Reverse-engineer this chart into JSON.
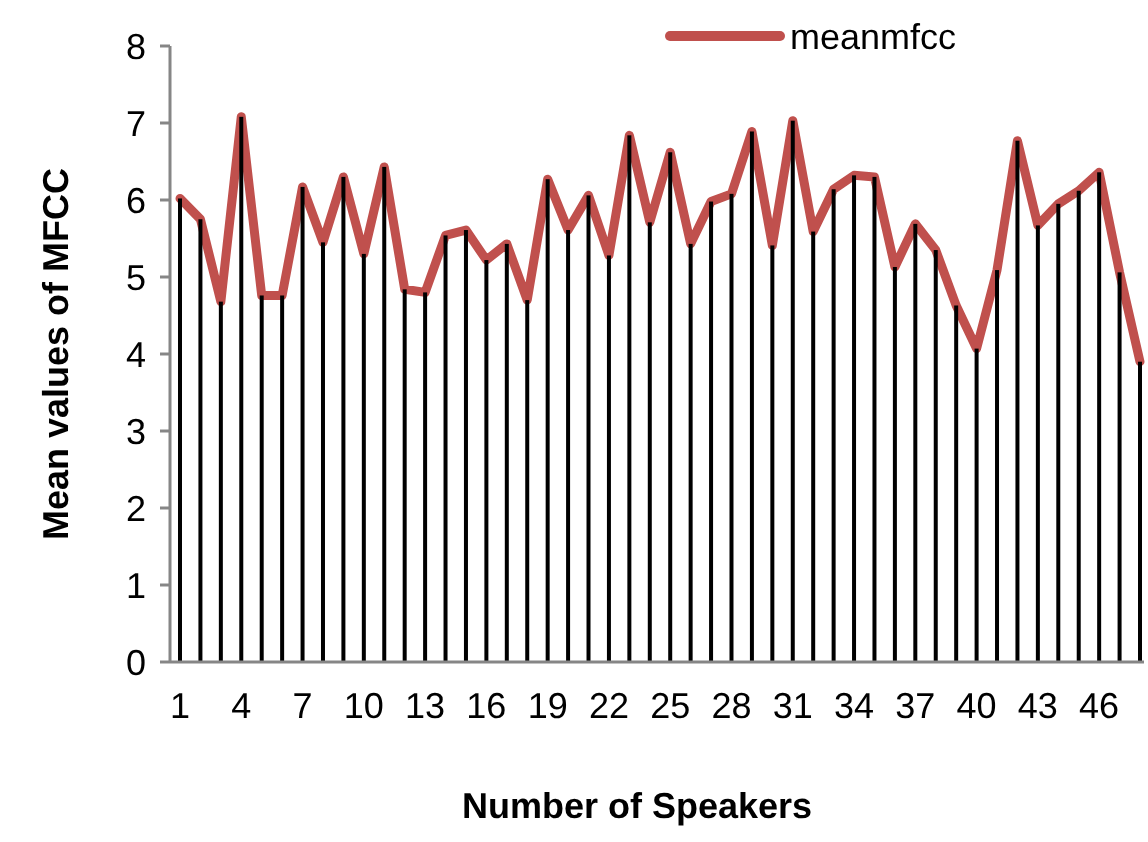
{
  "chart_data": {
    "type": "line",
    "xlabel": "Number of Speakers",
    "ylabel": "Mean values of MFCC",
    "categories": [
      "1",
      null,
      null,
      "4",
      null,
      null,
      "7",
      null,
      null,
      "10",
      null,
      null,
      "13",
      null,
      null,
      "16",
      null,
      null,
      "19",
      null,
      null,
      "22",
      null,
      null,
      "25",
      null,
      null,
      "28",
      null,
      null,
      "31",
      null,
      null,
      "34",
      null,
      null,
      "37",
      null,
      null,
      "40",
      null,
      null,
      "43",
      null,
      null,
      "46",
      null,
      null
    ],
    "series": [
      {
        "type": "bar",
        "color": "#000000",
        "values": [
          6.02,
          5.75,
          4.68,
          7.08,
          4.76,
          4.76,
          6.17,
          5.45,
          6.3,
          5.3,
          6.43,
          4.84,
          4.8,
          5.54,
          5.61,
          5.22,
          5.43,
          4.7,
          6.27,
          5.61,
          6.06,
          5.28,
          6.84,
          5.71,
          6.62,
          5.43,
          5.98,
          6.08,
          6.89,
          5.41,
          7.03,
          5.59,
          6.14,
          6.32,
          6.3,
          5.13,
          5.69,
          5.35,
          4.63,
          4.07,
          5.09,
          6.77,
          5.67,
          5.95,
          6.12,
          6.36,
          5.06,
          3.9
        ]
      },
      {
        "name": "meanmfcc",
        "color": "#c0504d",
        "values": [
          6.02,
          5.75,
          4.68,
          7.08,
          4.76,
          4.76,
          6.17,
          5.45,
          6.3,
          5.3,
          6.43,
          4.84,
          4.8,
          5.54,
          5.61,
          5.22,
          5.43,
          4.7,
          6.27,
          5.61,
          6.06,
          5.28,
          6.84,
          5.71,
          6.62,
          5.43,
          5.98,
          6.08,
          6.89,
          5.41,
          7.03,
          5.59,
          6.14,
          6.32,
          6.3,
          5.13,
          5.69,
          5.35,
          4.63,
          4.07,
          5.09,
          6.77,
          5.67,
          5.95,
          6.12,
          6.36,
          5.06,
          3.9
        ]
      }
    ],
    "ylim": [
      0,
      8
    ],
    "yticks": [
      0,
      1,
      2,
      3,
      4,
      5,
      6,
      7,
      8
    ],
    "legend": "top right",
    "marker": "none",
    "line_style": "solid"
  }
}
